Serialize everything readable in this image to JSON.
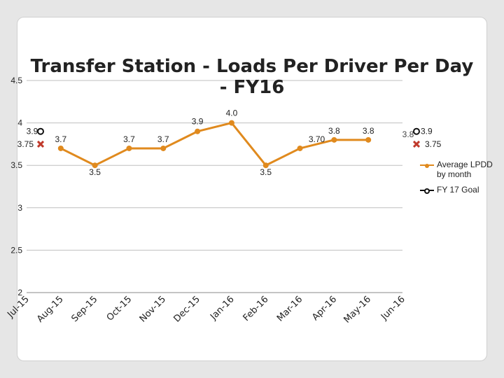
{
  "chart_data": {
    "type": "line",
    "title": "Transfer Station - Loads Per Driver Per Day - FY16",
    "categories": [
      "Jul-15",
      "Aug-15",
      "Sep-15",
      "Oct-15",
      "Nov-15",
      "Dec-15",
      "Jan-16",
      "Feb-16",
      "Mar-16",
      "Apr-16",
      "May-16",
      "Jun-16"
    ],
    "ylim": [
      2,
      4.5
    ],
    "yticks": [
      "2",
      "2.5",
      "3",
      "3.5",
      "4",
      "4.5"
    ],
    "grid": true,
    "legend_position": "right",
    "series": [
      {
        "name": "Average LPDD by month",
        "color": "#e08a1e",
        "values": [
          null,
          3.7,
          3.5,
          3.7,
          3.7,
          3.9,
          4.0,
          3.5,
          3.7,
          3.8,
          3.8,
          null
        ],
        "labels": [
          "",
          "3.7",
          "3.5",
          "3.7",
          "3.7",
          "3.9",
          "4.0",
          "3.5",
          "3.70",
          "3.8",
          "3.8",
          ""
        ]
      },
      {
        "name": "FY 17 Goal",
        "color": "#111111",
        "values": [
          3.9,
          null,
          null,
          null,
          null,
          null,
          null,
          null,
          null,
          null,
          null,
          3.9
        ],
        "labels": [
          "3.9",
          "",
          "",
          "",
          "",
          "",
          "",
          "",
          "",
          "",
          "",
          "3.9"
        ]
      }
    ],
    "extra_points": [
      {
        "category": "Jul-15",
        "value": 3.75,
        "label": "3.75",
        "color": "#c0392b",
        "marker": "x"
      },
      {
        "category": "Jun-16",
        "value": 3.75,
        "label": "3.75",
        "color": "#c0392b",
        "marker": "x"
      }
    ],
    "extra_labels": [
      {
        "category": "Jun-16",
        "text": "3.8"
      }
    ]
  }
}
